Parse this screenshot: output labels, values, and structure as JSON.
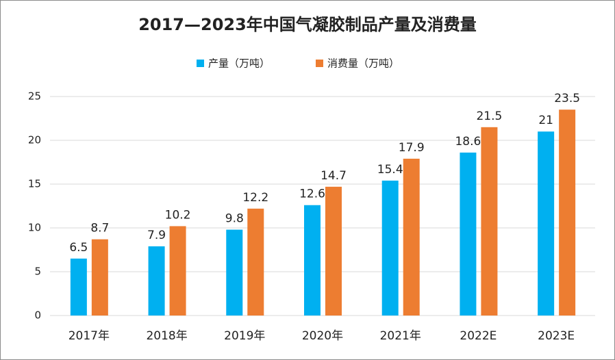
{
  "chart_data": {
    "type": "bar",
    "title": "2017—2023年中国气凝胶制品产量及消费量",
    "categories": [
      "2017年",
      "2018年",
      "2019年",
      "2020年",
      "2021年",
      "2022E",
      "2023E"
    ],
    "series": [
      {
        "name": "产量（万吨）",
        "color": "#00b0f0",
        "values": [
          6.5,
          7.9,
          9.8,
          12.6,
          15.4,
          18.6,
          21
        ]
      },
      {
        "name": "消费量（万吨）",
        "color": "#ed7d31",
        "values": [
          8.7,
          10.2,
          12.2,
          14.7,
          17.9,
          21.5,
          23.5
        ]
      }
    ],
    "ylim": [
      0,
      25
    ],
    "yticks": [
      0,
      5,
      10,
      15,
      20,
      25
    ],
    "grid": true,
    "legend": "top"
  }
}
